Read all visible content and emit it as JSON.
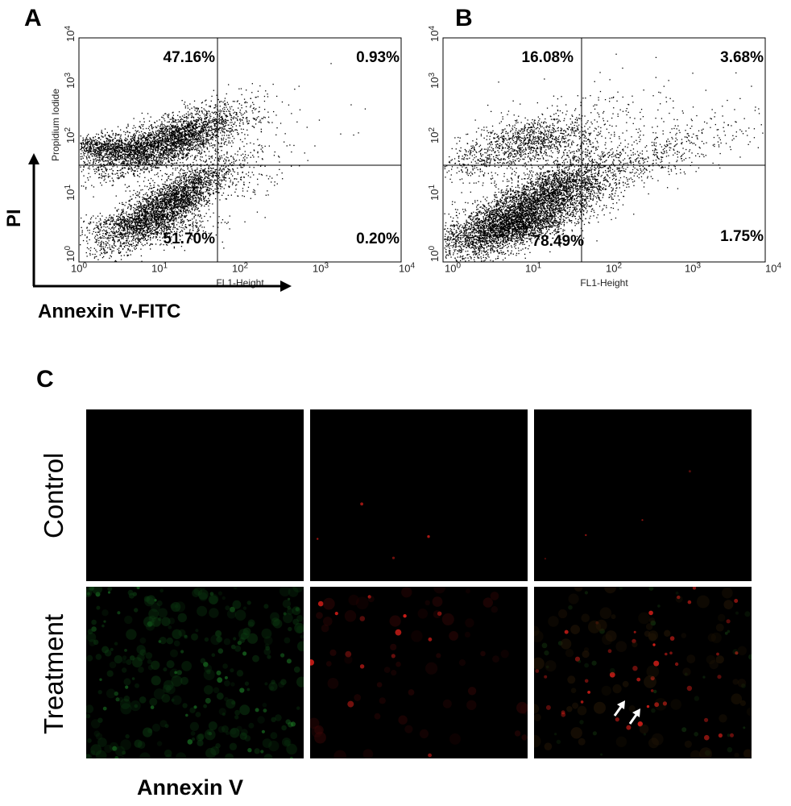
{
  "panels": {
    "A": {
      "letter": "A",
      "quadrants": {
        "upper_left": "47.16%",
        "upper_right": "0.93%",
        "lower_left": "51.70%",
        "lower_right": "0.20%"
      },
      "xlabel": "FL1-Height",
      "ylabel": "Propidium Iodide",
      "x_ticks": [
        {
          "base": "10",
          "exp": "0"
        },
        {
          "base": "10",
          "exp": "1"
        },
        {
          "base": "10",
          "exp": "2"
        },
        {
          "base": "10",
          "exp": "3"
        },
        {
          "base": "10",
          "exp": "4"
        }
      ],
      "y_ticks": [
        {
          "base": "10",
          "exp": "0"
        },
        {
          "base": "10",
          "exp": "1"
        },
        {
          "base": "10",
          "exp": "2"
        },
        {
          "base": "10",
          "exp": "3"
        },
        {
          "base": "10",
          "exp": "4"
        }
      ]
    },
    "B": {
      "letter": "B",
      "quadrants": {
        "upper_left": "16.08%",
        "upper_right": "3.68%",
        "lower_left": "78.49%",
        "lower_right": "1.75%"
      },
      "xlabel": "FL1-Height",
      "x_ticks": [
        {
          "base": "10",
          "exp": "0"
        },
        {
          "base": "10",
          "exp": "1"
        },
        {
          "base": "10",
          "exp": "2"
        },
        {
          "base": "10",
          "exp": "3"
        },
        {
          "base": "10",
          "exp": "4"
        }
      ],
      "y_ticks": [
        {
          "base": "10",
          "exp": "0"
        },
        {
          "base": "10",
          "exp": "1"
        },
        {
          "base": "10",
          "exp": "2"
        },
        {
          "base": "10",
          "exp": "3"
        },
        {
          "base": "10",
          "exp": "4"
        }
      ]
    },
    "C": {
      "letter": "C",
      "rows": [
        "Control",
        "Treatment"
      ],
      "footer": "Annexin V"
    }
  },
  "axes": {
    "y_arrow_label": "PI",
    "x_arrow_label": "Annexin V-FITC"
  },
  "colors": {
    "annexin_green": "#1f8a2a",
    "pi_red": "#e0201a",
    "image_background": "#000000",
    "arrow": "#ffffff"
  }
}
